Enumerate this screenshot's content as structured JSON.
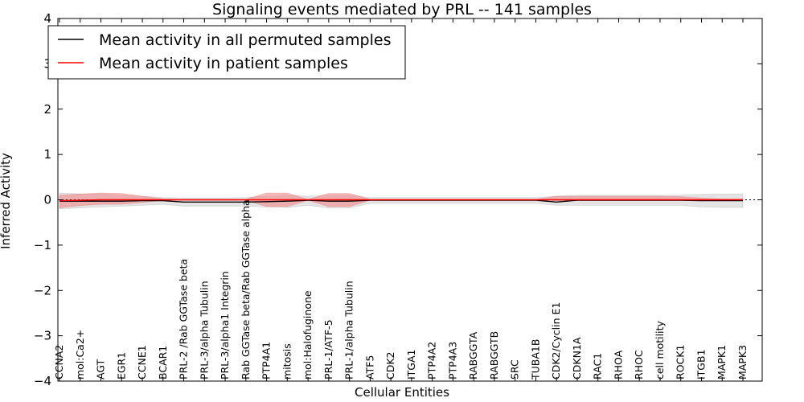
{
  "chart_data": {
    "type": "line",
    "title": "Signaling events mediated by PRL -- 141 samples",
    "xlabel": "Cellular Entities",
    "ylabel": "Inferred Activity",
    "ylim": [
      -4,
      4
    ],
    "yticks": [
      "−4",
      "−3",
      "−2",
      "−1",
      "0",
      "1",
      "2",
      "3",
      "4"
    ],
    "legend_position": "top-left",
    "categories": [
      "CCNA2",
      "mol:Ca2+",
      "AGT",
      "EGR1",
      "CCNE1",
      "BCAR1",
      "PRL-2 /Rab GGTase beta",
      "PRL-3/alpha Tubulin",
      "PRL-3/alpha1 Integrin",
      "Rab GGTase beta/Rab GGTase alpha",
      "PTP4A1",
      "mitosis",
      "mol:Halofuginone",
      "PRL-1/ATF-5",
      "PRL-1/alpha Tubulin",
      "ATF5",
      "CDK2",
      "ITGA1",
      "PTP4A2",
      "PTP4A3",
      "RABGGTA",
      "RABGGTB",
      "SRC",
      "TUBA1B",
      "CDK2/Cyclin E1",
      "CDKN1A",
      "RAC1",
      "RHOA",
      "RHOC",
      "cell motility",
      "ROCK1",
      "ITGB1",
      "MAPK1",
      "MAPK3"
    ],
    "series": [
      {
        "name": "Mean activity in all permuted samples",
        "color": "#000000",
        "values": [
          -0.03,
          -0.03,
          -0.03,
          -0.03,
          -0.02,
          -0.02,
          -0.05,
          -0.05,
          -0.05,
          -0.05,
          -0.04,
          -0.03,
          -0.01,
          -0.03,
          -0.03,
          -0.01,
          -0.01,
          -0.01,
          -0.01,
          -0.01,
          -0.01,
          -0.01,
          -0.01,
          -0.01,
          -0.05,
          -0.01,
          -0.01,
          -0.01,
          -0.01,
          -0.01,
          -0.01,
          -0.02,
          -0.02,
          -0.02
        ],
        "band_upper": [
          0.15,
          0.13,
          0.12,
          0.1,
          0.08,
          0.05,
          0.04,
          0.04,
          0.04,
          0.05,
          0.08,
          0.1,
          0.08,
          0.1,
          0.1,
          0.05,
          0.05,
          0.05,
          0.05,
          0.05,
          0.05,
          0.05,
          0.05,
          0.05,
          0.08,
          0.1,
          0.1,
          0.1,
          0.1,
          0.1,
          0.1,
          0.12,
          0.13,
          0.13
        ],
        "band_lower": [
          -0.2,
          -0.18,
          -0.16,
          -0.14,
          -0.12,
          -0.1,
          -0.14,
          -0.14,
          -0.14,
          -0.14,
          -0.16,
          -0.17,
          -0.12,
          -0.18,
          -0.18,
          -0.08,
          -0.08,
          -0.08,
          -0.08,
          -0.08,
          -0.08,
          -0.08,
          -0.08,
          -0.08,
          -0.12,
          -0.12,
          -0.12,
          -0.12,
          -0.12,
          -0.12,
          -0.12,
          -0.16,
          -0.17,
          -0.17
        ]
      },
      {
        "name": "Mean activity in patient samples",
        "color": "#ff0000",
        "values": [
          -0.02,
          -0.01,
          0.0,
          0.0,
          0.0,
          0.0,
          0.0,
          0.0,
          0.0,
          0.0,
          0.0,
          0.0,
          0.0,
          0.0,
          0.0,
          0.0,
          0.0,
          0.0,
          0.0,
          0.0,
          0.0,
          0.0,
          0.0,
          0.0,
          0.0,
          0.0,
          0.0,
          0.0,
          0.0,
          0.0,
          0.0,
          0.0,
          0.0,
          0.0
        ],
        "band_upper": [
          0.1,
          0.13,
          0.15,
          0.14,
          0.08,
          0.02,
          0.01,
          0.01,
          0.01,
          0.01,
          0.15,
          0.15,
          0.01,
          0.14,
          0.14,
          0.01,
          0.01,
          0.01,
          0.01,
          0.01,
          0.01,
          0.01,
          0.01,
          0.01,
          0.08,
          0.08,
          0.08,
          0.08,
          0.08,
          0.08,
          0.07,
          0.04,
          0.02,
          0.02
        ],
        "band_lower": [
          -0.18,
          -0.13,
          -0.1,
          -0.1,
          -0.06,
          -0.01,
          -0.01,
          -0.01,
          -0.01,
          -0.01,
          -0.15,
          -0.15,
          -0.01,
          -0.15,
          -0.15,
          -0.01,
          -0.01,
          -0.01,
          -0.01,
          -0.01,
          -0.01,
          -0.01,
          -0.01,
          -0.01,
          -0.02,
          -0.02,
          -0.02,
          -0.02,
          -0.02,
          -0.02,
          -0.02,
          -0.02,
          -0.02,
          -0.02
        ]
      }
    ],
    "zero_dotted_line": true
  }
}
